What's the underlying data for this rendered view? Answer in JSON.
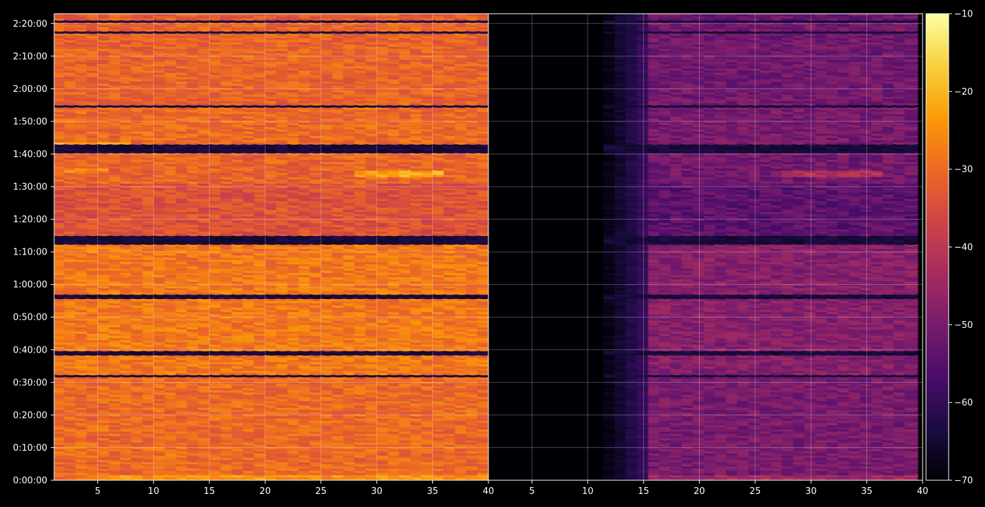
{
  "chart_data": {
    "type": "heatmap",
    "title": "",
    "xlabel": "",
    "ylabel": "",
    "background_color": "#000000",
    "axis_color": "#ffffff",
    "grid": true,
    "grid_color": "#ffffff",
    "colormap": "inferno",
    "colormap_stops": [
      "#000004",
      "#1b0c41",
      "#4a0c6b",
      "#781c6d",
      "#a52c60",
      "#cf4446",
      "#ed6925",
      "#fb9b06",
      "#f7d13d",
      "#fcffa4"
    ],
    "colorbar": {
      "position": "right",
      "range": [
        -70,
        -10
      ],
      "ticks": [
        -70,
        -60,
        -50,
        -40,
        -30,
        -20,
        -10
      ],
      "tick_labels": [
        "−70",
        "−60",
        "−50",
        "−40",
        "−30",
        "−20",
        "−10"
      ]
    },
    "y_axis": {
      "unit": "seconds",
      "range": [
        0,
        8580
      ],
      "ticks": [
        0,
        600,
        1200,
        1800,
        2400,
        3000,
        3600,
        4200,
        4800,
        5400,
        6000,
        6600,
        7200,
        7800,
        8400
      ],
      "tick_labels": [
        "0:00:00",
        "0:10:00",
        "0:20:00",
        "0:30:00",
        "0:40:00",
        "0:50:00",
        "1:00:00",
        "1:10:00",
        "1:20:00",
        "1:30:00",
        "1:40:00",
        "1:50:00",
        "2:00:00",
        "2:10:00",
        "2:20:00"
      ]
    },
    "panels": [
      {
        "x_range": [
          1.1,
          40
        ],
        "x_ticks": [
          5,
          10,
          15,
          20,
          25,
          30,
          35,
          40
        ],
        "x_tick_labels": [
          "5",
          "10",
          "15",
          "20",
          "25",
          "30",
          "35",
          "40"
        ],
        "cells_x_range": [
          1.6,
          39.6
        ],
        "level_base": -30,
        "noise_floor_x": 0,
        "cell_spacing": 1
      },
      {
        "x_range": [
          1.1,
          40
        ],
        "x_ticks": [
          5,
          10,
          15,
          20,
          25,
          30,
          35,
          40
        ],
        "x_tick_labels": [
          "5",
          "10",
          "15",
          "20",
          "25",
          "30",
          "35",
          "40"
        ],
        "cells_x_range": [
          12.0,
          39.6
        ],
        "level_base": -50,
        "noise_floor_x": 15.5,
        "cell_spacing": 1
      }
    ],
    "time_bands": [
      {
        "start": 0,
        "end": 1880,
        "offset": 0
      },
      {
        "start": 1930,
        "end": 4320,
        "offset": 2
      },
      {
        "start": 4520,
        "end": 5450,
        "offset": -4
      },
      {
        "start": 5480,
        "end": 6020,
        "offset": -1
      },
      {
        "start": 6180,
        "end": 6860,
        "offset": 0
      },
      {
        "start": 6900,
        "end": 8420,
        "offset": -1
      },
      {
        "start": 8480,
        "end": 8580,
        "offset": -2
      }
    ],
    "hot_rows": [
      {
        "t": 60,
        "x_from": 5,
        "x_to": 40,
        "offset": 6
      },
      {
        "t": 5640,
        "x_from": 28,
        "x_to": 36,
        "offset": 9
      },
      {
        "t": 6180,
        "x_from": 1,
        "x_to": 8,
        "offset": 8
      },
      {
        "t": 5700,
        "x_from": 1,
        "x_to": 6,
        "offset": 5
      }
    ],
    "dark_rows": [
      2330,
      3380,
      4370,
      6060,
      6880,
      8240
    ]
  }
}
